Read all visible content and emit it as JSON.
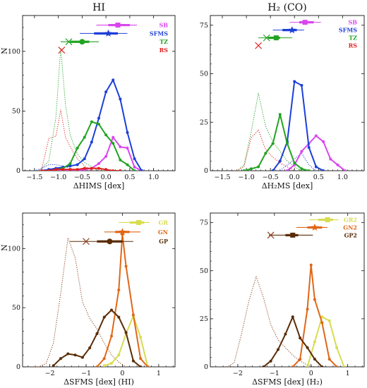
{
  "chart_data": [
    {
      "type": "line",
      "title": "HI",
      "xlabel": "ΔHIMS [dex]",
      "ylabel": "N",
      "xlim": [
        -1.75,
        1.45
      ],
      "ylim": [
        0,
        130
      ],
      "xticks": [
        -1.5,
        -1.0,
        -0.5,
        0.0,
        0.5,
        1.0
      ],
      "xtick_labels": [
        "−1.5",
        "−1.0",
        "−0.5",
        "0.0",
        "0.5",
        "1.0"
      ],
      "yticks": [
        0,
        50,
        100
      ],
      "ytick_labels": [
        "0",
        "50",
        "100"
      ],
      "legend_placement": "top-right",
      "series": [
        {
          "name": "SB",
          "color": "#d946ef",
          "style": "solid",
          "x": [
            -1.35,
            -1.2,
            -1.05,
            -0.9,
            -0.75,
            -0.6,
            -0.45,
            -0.3,
            -0.15,
            0.0,
            0.15,
            0.3,
            0.45,
            0.6,
            0.75
          ],
          "y": [
            0,
            0,
            0,
            0,
            0,
            0,
            1,
            2,
            6,
            12,
            28,
            20,
            19,
            3,
            0
          ]
        },
        {
          "name": "SFMS",
          "color": "#1d3fd8",
          "style": "solid",
          "x": [
            -1.35,
            -1.2,
            -1.05,
            -0.9,
            -0.75,
            -0.6,
            -0.45,
            -0.3,
            -0.15,
            0.0,
            0.15,
            0.3,
            0.45,
            0.6,
            0.75
          ],
          "y": [
            0,
            1,
            2,
            3,
            4,
            5,
            10,
            24,
            44,
            66,
            76,
            60,
            32,
            10,
            0
          ]
        },
        {
          "name": "TZ",
          "color": "#22a322",
          "style": "solid",
          "x": [
            -1.35,
            -1.2,
            -1.05,
            -0.9,
            -0.75,
            -0.6,
            -0.45,
            -0.3,
            -0.15,
            0.0,
            0.15,
            0.3,
            0.45,
            0.6
          ],
          "y": [
            0,
            0,
            1,
            2,
            6,
            19,
            28,
            41,
            39,
            30,
            23,
            9,
            5,
            0
          ]
        },
        {
          "name": "RS",
          "color": "#e0201c",
          "style": "solid",
          "x": [
            -1.35,
            -1.2,
            -1.05,
            -0.9,
            -0.75,
            -0.6,
            -0.45,
            -0.3,
            -0.15,
            0.0,
            0.15,
            0.3
          ],
          "y": [
            0,
            0,
            1,
            1,
            1,
            1,
            2,
            2,
            2,
            1,
            0,
            0
          ]
        },
        {
          "name": "TZ (all)",
          "color": "#22a322",
          "style": "dotted",
          "x": [
            -1.35,
            -1.2,
            -1.05,
            -0.95,
            -0.85,
            -0.75,
            -0.6,
            -0.45,
            -0.3,
            -0.15
          ],
          "y": [
            2,
            8,
            45,
            103,
            55,
            30,
            14,
            7,
            3,
            0
          ]
        },
        {
          "name": "RS (all)",
          "color": "#e0201c",
          "style": "dotted",
          "x": [
            -1.35,
            -1.2,
            -1.05,
            -0.95,
            -0.85,
            -0.75,
            -0.6,
            -0.45,
            -0.3
          ],
          "y": [
            1,
            27,
            29,
            51,
            28,
            20,
            10,
            4,
            0
          ]
        },
        {
          "name": "SFMS (all)",
          "color": "#1d3fd8",
          "style": "dotted",
          "x": [
            -1.5,
            -1.35,
            -1.2,
            -1.05,
            -0.9,
            -0.75,
            -0.6
          ],
          "y": [
            0,
            2,
            5,
            5,
            4,
            2,
            0
          ]
        }
      ],
      "markers": [
        {
          "name": "SB",
          "color": "#d946ef",
          "y": 122,
          "center": 0.25,
          "marker": "square",
          "err_thick": [
            0.05,
            0.5
          ],
          "err_thin": [
            -0.2,
            0.65
          ]
        },
        {
          "name": "SFMS",
          "color": "#1d3fd8",
          "y": 115,
          "center": 0.05,
          "marker": "star",
          "err_thick": [
            -0.25,
            0.25
          ],
          "err_thin": [
            -0.55,
            0.45
          ]
        },
        {
          "name": "TZ",
          "color": "#22a322",
          "y": 108,
          "center": -0.5,
          "marker": "circle",
          "err_thick": [
            -0.75,
            -0.35
          ],
          "err_thin": [
            -0.95,
            -0.15
          ]
        },
        {
          "name": "RS",
          "color": "#e0201c",
          "y": 101,
          "center": -0.93,
          "marker": "x",
          "err_thick": null,
          "err_thin": null
        }
      ],
      "extra_markers": [
        {
          "color": "#22a322",
          "y": 108,
          "x": -0.78,
          "marker": "x"
        }
      ]
    },
    {
      "type": "line",
      "title": "H₂ (CO)",
      "xlabel": "ΔH₂MS [dex]",
      "ylabel": "",
      "xlim": [
        -1.75,
        1.45
      ],
      "ylim": [
        0,
        80
      ],
      "xticks": [
        -1.5,
        -1.0,
        -0.5,
        0.0,
        0.5,
        1.0
      ],
      "xtick_labels": [
        "−1.5",
        "−1.0",
        "−0.5",
        "0.0",
        "0.5",
        "1.0"
      ],
      "yticks": [
        0,
        25,
        50,
        75
      ],
      "ytick_labels": [
        "0",
        "25",
        "50",
        "75"
      ],
      "legend_placement": "top-right",
      "series": [
        {
          "name": "SB",
          "color": "#d946ef",
          "style": "solid",
          "x": [
            -0.15,
            0.0,
            0.15,
            0.3,
            0.45,
            0.6,
            0.75,
            0.9,
            1.05
          ],
          "y": [
            0,
            3,
            10,
            14,
            18,
            15,
            6,
            3,
            0
          ]
        },
        {
          "name": "SFMS",
          "color": "#1d3fd8",
          "style": "solid",
          "x": [
            -0.45,
            -0.3,
            -0.15,
            0.0,
            0.15,
            0.3,
            0.45,
            0.6
          ],
          "y": [
            0,
            5,
            15,
            46,
            44,
            12,
            2,
            0
          ]
        },
        {
          "name": "TZ",
          "color": "#22a322",
          "style": "solid",
          "x": [
            -1.05,
            -0.9,
            -0.75,
            -0.6,
            -0.45,
            -0.3,
            -0.15,
            0.0,
            0.15,
            0.3
          ],
          "y": [
            0,
            1,
            2,
            9,
            14,
            29,
            14,
            4,
            1,
            0
          ]
        },
        {
          "name": "TZ (all)",
          "color": "#22a322",
          "style": "dotted",
          "x": [
            -1.2,
            -1.05,
            -0.9,
            -0.75,
            -0.6,
            -0.45,
            -0.3,
            -0.15,
            0.0,
            0.15
          ],
          "y": [
            0,
            3,
            20,
            40,
            23,
            15,
            10,
            5,
            2,
            0
          ]
        },
        {
          "name": "RS (all)",
          "color": "#e0201c",
          "style": "dotted",
          "x": [
            -1.2,
            -1.05,
            -0.9,
            -0.75,
            -0.6,
            -0.45,
            -0.3,
            -0.15,
            0.0
          ],
          "y": [
            0,
            2,
            17,
            21,
            11,
            7,
            4,
            2,
            0
          ]
        },
        {
          "name": "SFMS (all)",
          "color": "#1d3fd8",
          "style": "dotted",
          "x": [
            -0.3,
            -0.15,
            0.0,
            0.15,
            0.3,
            0.45
          ],
          "y": [
            0,
            3,
            6,
            9,
            3,
            0
          ]
        }
      ],
      "markers": [
        {
          "name": "SB",
          "color": "#d946ef",
          "y": 76.5,
          "center": 0.22,
          "marker": "square",
          "err_thick": [
            0.1,
            0.4
          ],
          "err_thin": [
            -0.1,
            0.55
          ]
        },
        {
          "name": "SFMS",
          "color": "#1d3fd8",
          "y": 72.5,
          "center": -0.05,
          "marker": "star",
          "err_thick": [
            -0.25,
            0.05
          ],
          "err_thin": [
            -0.45,
            0.2
          ]
        },
        {
          "name": "TZ",
          "color": "#22a322",
          "y": 68.5,
          "center": -0.38,
          "marker": "square",
          "err_thick": [
            -0.55,
            -0.3
          ],
          "err_thin": [
            -0.75,
            -0.05
          ]
        },
        {
          "name": "RS",
          "color": "#e0201c",
          "y": 64.5,
          "center": -0.75,
          "marker": "x",
          "err_thick": null,
          "err_thin": null
        }
      ],
      "extra_markers": [
        {
          "color": "#22a322",
          "y": 68.5,
          "x": -0.58,
          "marker": "x"
        }
      ]
    },
    {
      "type": "line",
      "title": "",
      "xlabel": "ΔSFMS [dex] (HI)",
      "ylabel": "N",
      "xlim": [
        -2.75,
        1.45
      ],
      "ylim": [
        0,
        130
      ],
      "xticks": [
        -2,
        -1,
        0,
        1
      ],
      "xtick_labels": [
        "−2",
        "−1",
        "0",
        "1"
      ],
      "yticks": [
        0,
        50,
        100
      ],
      "ytick_labels": [
        "0",
        "50",
        "100"
      ],
      "legend_placement": "top-right",
      "series": [
        {
          "name": "GR",
          "color": "#d8dc50",
          "style": "solid",
          "x": [
            -0.5,
            -0.3,
            -0.1,
            0.1,
            0.3,
            0.5,
            0.7
          ],
          "y": [
            1,
            3,
            10,
            28,
            43,
            25,
            0
          ]
        },
        {
          "name": "GN",
          "color": "#e06718",
          "style": "solid",
          "x": [
            -0.7,
            -0.5,
            -0.3,
            -0.1,
            0.0,
            0.1,
            0.3,
            0.5,
            0.7
          ],
          "y": [
            0,
            7,
            26,
            65,
            112,
            85,
            44,
            7,
            0
          ]
        },
        {
          "name": "GP",
          "color": "#5a2c06",
          "style": "solid",
          "x": [
            -1.9,
            -1.7,
            -1.5,
            -1.3,
            -1.1,
            -0.9,
            -0.7,
            -0.5,
            -0.3,
            -0.1,
            0.1,
            0.3,
            0.5
          ],
          "y": [
            1,
            7,
            11,
            10,
            8,
            16,
            28,
            42,
            48,
            42,
            29,
            5,
            0
          ]
        },
        {
          "name": "GP (all)",
          "color": "#8b3a1a",
          "style": "dotted",
          "x": [
            -2.5,
            -2.3,
            -2.1,
            -1.9,
            -1.7,
            -1.5,
            -1.3,
            -1.1,
            -0.9,
            -0.7,
            -0.5,
            -0.3,
            -0.1,
            0.1
          ],
          "y": [
            0,
            0,
            3,
            20,
            62,
            109,
            92,
            55,
            41,
            32,
            20,
            10,
            4,
            0
          ]
        }
      ],
      "markers": [
        {
          "name": "GR",
          "color": "#d8dc50",
          "y": 122,
          "center": 0.45,
          "marker": "square",
          "err_thick": [
            0.2,
            0.6
          ],
          "err_thin": [
            -0.1,
            0.75
          ]
        },
        {
          "name": "GN",
          "color": "#e06718",
          "y": 114,
          "center": 0.0,
          "marker": "star",
          "err_thick": [
            -0.2,
            0.2
          ],
          "err_thin": [
            -0.5,
            0.5
          ]
        },
        {
          "name": "GP",
          "color": "#5a2c06",
          "y": 106,
          "center": -0.35,
          "marker": "circle",
          "err_thick": [
            -0.7,
            0.0
          ],
          "err_thin": [
            -1.45,
            0.3
          ]
        }
      ],
      "extra_markers": [
        {
          "color": "#8b3a1a",
          "y": 106,
          "x": -1.0,
          "marker": "x"
        }
      ]
    },
    {
      "type": "line",
      "title": "",
      "xlabel": "ΔSFMS [dex] (H₂)",
      "ylabel": "",
      "xlim": [
        -2.75,
        1.45
      ],
      "ylim": [
        0,
        80
      ],
      "xticks": [
        -2,
        -1,
        0,
        1
      ],
      "xtick_labels": [
        "−2",
        "−1",
        "0",
        "1"
      ],
      "yticks": [
        0,
        25,
        50,
        75
      ],
      "ytick_labels": [
        "0",
        "25",
        "50",
        "75"
      ],
      "legend_placement": "top-right",
      "series": [
        {
          "name": "GR2",
          "color": "#d8dc50",
          "style": "solid",
          "x": [
            -0.1,
            0.1,
            0.3,
            0.5,
            0.7,
            0.9
          ],
          "y": [
            0,
            13,
            26,
            24,
            10,
            0
          ]
        },
        {
          "name": "GN2",
          "color": "#e06718",
          "style": "solid",
          "x": [
            -0.5,
            -0.3,
            -0.1,
            0.0,
            0.1,
            0.3,
            0.5,
            0.7
          ],
          "y": [
            0,
            4,
            30,
            53,
            35,
            23,
            4,
            0
          ]
        },
        {
          "name": "GP2",
          "color": "#5a2c06",
          "style": "solid",
          "x": [
            -1.3,
            -1.1,
            -0.9,
            -0.7,
            -0.5,
            -0.3,
            -0.1,
            0.1,
            0.3
          ],
          "y": [
            0,
            3,
            9,
            17,
            26,
            15,
            10,
            4,
            0
          ]
        },
        {
          "name": "GP2 (all)",
          "color": "#8b3a1a",
          "style": "dotted",
          "x": [
            -2.3,
            -2.1,
            -1.9,
            -1.7,
            -1.5,
            -1.3,
            -1.1,
            -0.9,
            -0.7,
            -0.5,
            -0.3,
            -0.1,
            0.1
          ],
          "y": [
            0,
            2,
            17,
            34,
            47,
            36,
            22,
            14,
            10,
            6,
            3,
            1,
            0
          ]
        }
      ],
      "markers": [
        {
          "name": "GR2",
          "color": "#d8dc50",
          "y": 76.5,
          "center": 0.45,
          "marker": "square",
          "err_thick": [
            0.2,
            0.6
          ],
          "err_thin": [
            -0.05,
            0.75
          ]
        },
        {
          "name": "GN2",
          "color": "#e06718",
          "y": 72.5,
          "center": 0.1,
          "marker": "star",
          "err_thick": [
            -0.1,
            0.3
          ],
          "err_thin": [
            -0.4,
            0.45
          ]
        },
        {
          "name": "GP2",
          "color": "#5a2c06",
          "y": 68.5,
          "center": -0.5,
          "marker": "square",
          "err_thick": [
            -0.7,
            -0.35
          ],
          "err_thin": [
            -1.15,
            0.05
          ]
        }
      ],
      "extra_markers": [
        {
          "color": "#8b3a1a",
          "y": 68.5,
          "x": -1.1,
          "marker": "x"
        }
      ]
    }
  ]
}
